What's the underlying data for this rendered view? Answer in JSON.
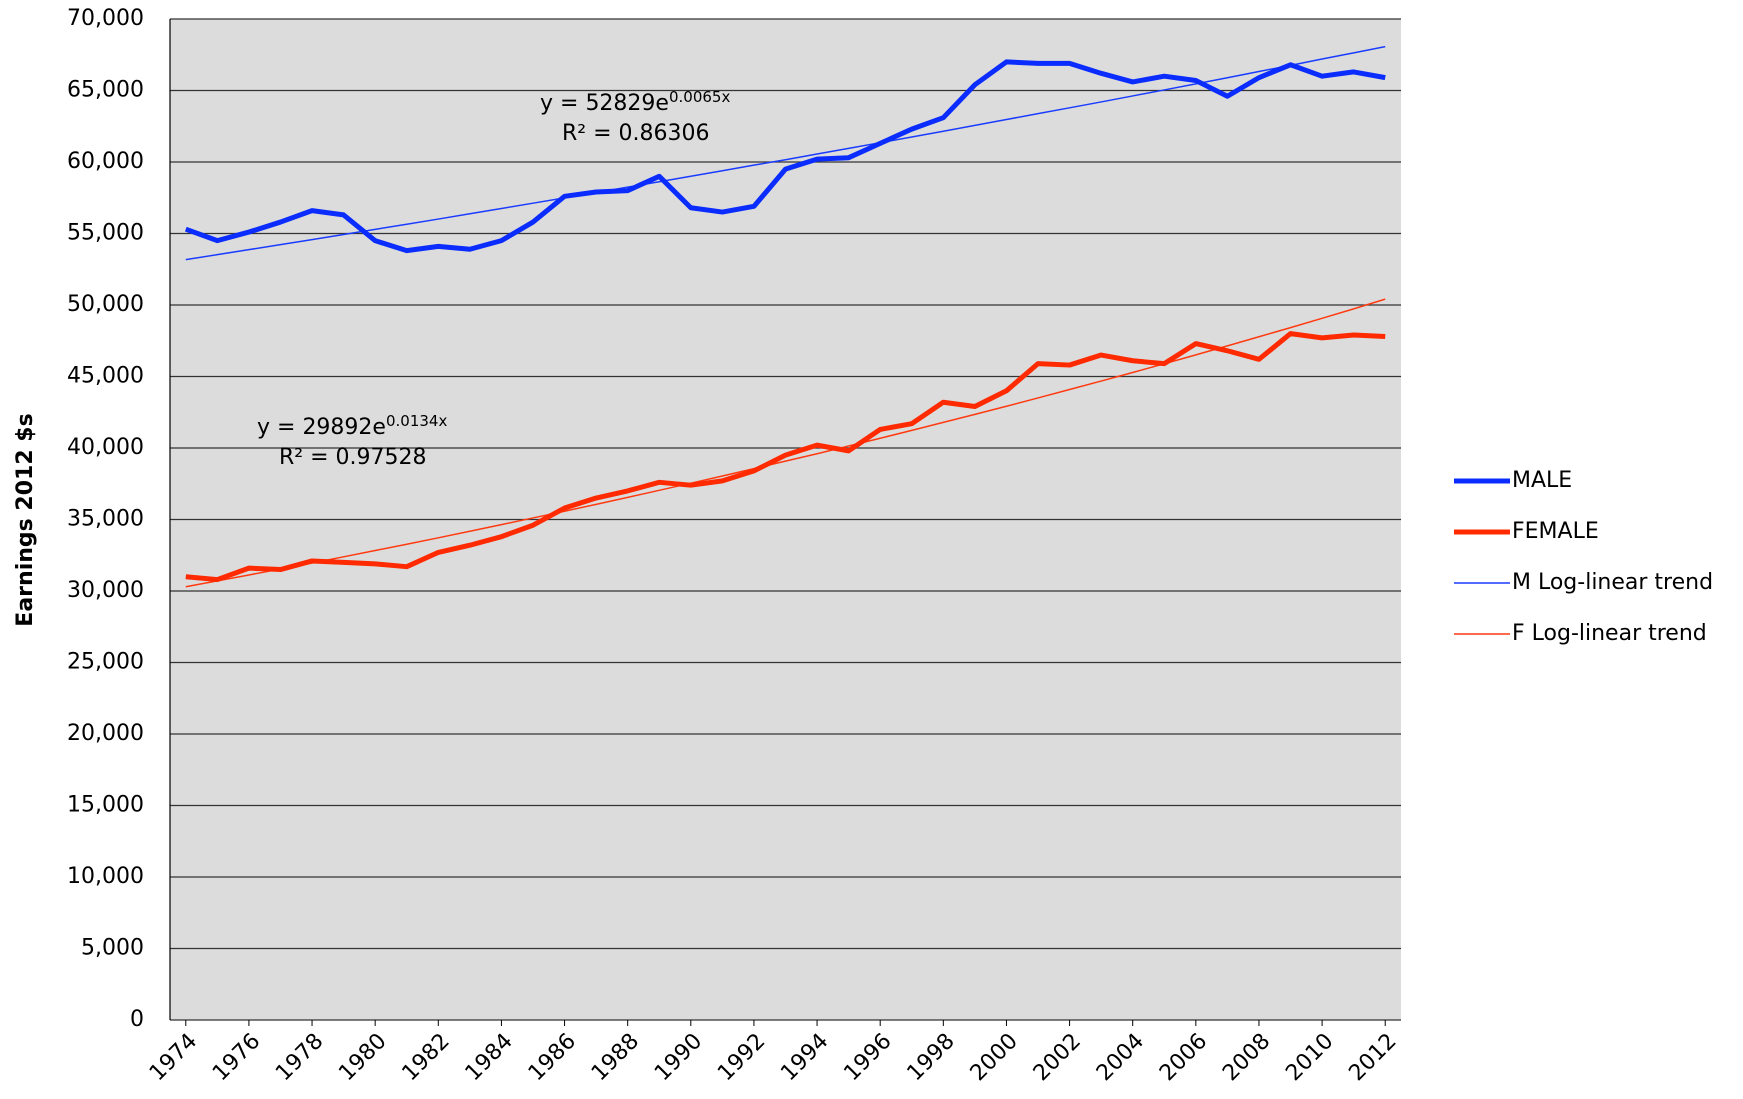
{
  "chart_data": {
    "type": "line",
    "y_label": "Earnings 2012 $s",
    "x": [
      1974,
      1975,
      1976,
      1977,
      1978,
      1979,
      1980,
      1981,
      1982,
      1983,
      1984,
      1985,
      1986,
      1987,
      1988,
      1989,
      1990,
      1991,
      1992,
      1993,
      1994,
      1995,
      1996,
      1997,
      1998,
      1999,
      2000,
      2001,
      2002,
      2003,
      2004,
      2005,
      2006,
      2007,
      2008,
      2009,
      2010,
      2011,
      2012
    ],
    "xlim": [
      1973.5,
      2012.5
    ],
    "xticks": [
      1974,
      1976,
      1978,
      1980,
      1982,
      1984,
      1986,
      1988,
      1990,
      1992,
      1994,
      1996,
      1998,
      2000,
      2002,
      2004,
      2006,
      2008,
      2010,
      2012
    ],
    "ylim": [
      0,
      70000
    ],
    "yticks": [
      0,
      {
        "value": 5000,
        "label": "5,000"
      },
      {
        "value": 10000,
        "label": "10,000"
      },
      {
        "value": 15000,
        "label": "15,000"
      },
      {
        "value": 20000,
        "label": "20,000"
      },
      {
        "value": 25000,
        "label": "25,000"
      },
      {
        "value": 30000,
        "label": "30,000"
      },
      {
        "value": 35000,
        "label": "35,000"
      },
      {
        "value": 40000,
        "label": "40,000"
      },
      {
        "value": 45000,
        "label": "45,000"
      },
      {
        "value": 50000,
        "label": "50,000"
      },
      {
        "value": 55000,
        "label": "55,000"
      },
      {
        "value": 60000,
        "label": "60,000"
      },
      {
        "value": 65000,
        "label": "65,000"
      },
      {
        "value": 70000,
        "label": "70,000"
      }
    ],
    "grid": true,
    "legend": "right",
    "series": [
      {
        "name": "MALE",
        "color": "#0a2cff",
        "width": 5,
        "values": [
          55300,
          54500,
          55100,
          55800,
          56600,
          56300,
          54500,
          53800,
          54100,
          53900,
          54500,
          55800,
          57600,
          57900,
          58000,
          59000,
          56800,
          56500,
          56900,
          59500,
          60200,
          60300,
          61300,
          62300,
          63100,
          65400,
          67000,
          66900,
          66900,
          66200,
          65600,
          66000,
          65700,
          64600,
          65900,
          66800,
          66000,
          66300,
          65900
        ]
      },
      {
        "name": "FEMALE",
        "color": "#ff2a00",
        "width": 5,
        "values": [
          31000,
          30800,
          31600,
          31500,
          32100,
          32000,
          31900,
          31700,
          32700,
          33200,
          33800,
          34600,
          35800,
          36500,
          37000,
          37600,
          37400,
          37700,
          38400,
          39500,
          40200,
          39800,
          41300,
          41700,
          43200,
          42900,
          44000,
          45900,
          45800,
          46500,
          46100,
          45900,
          47300,
          46800,
          46200,
          48000,
          47700,
          47900,
          47800
        ]
      },
      {
        "name": "M Log-linear trend",
        "color": "#1a3cff",
        "width": 1.5,
        "values": [
          53170,
          53520,
          53870,
          54220,
          54570,
          54930,
          55290,
          55650,
          56010,
          56380,
          56750,
          57120,
          57490,
          57860,
          58240,
          58620,
          59000,
          59390,
          59780,
          60160,
          60560,
          60950,
          61350,
          61750,
          62150,
          62560,
          62970,
          63380,
          63790,
          64200,
          64620,
          65040,
          65460,
          65890,
          66330,
          66760,
          67200,
          67630,
          68070
        ]
      },
      {
        "name": "F Log-linear trend",
        "color": "#ff3a10",
        "width": 1.5,
        "values": [
          30300,
          30710,
          31120,
          31540,
          31960,
          32390,
          32830,
          33270,
          33720,
          34180,
          34640,
          35110,
          35580,
          36060,
          36550,
          37040,
          37540,
          38040,
          38560,
          39080,
          39600,
          40140,
          40680,
          41230,
          41790,
          42350,
          42920,
          43500,
          44090,
          44680,
          45280,
          45890,
          46510,
          47140,
          47780,
          48420,
          49070,
          49730,
          50410
        ]
      }
    ],
    "annotations": [
      {
        "equation": "y = 52829e",
        "exponent": "0.0065x",
        "r2": "R² = 0.86306"
      },
      {
        "equation": "y = 29892e",
        "exponent": "0.0134x",
        "r2": "R² = 0.97528"
      }
    ]
  }
}
